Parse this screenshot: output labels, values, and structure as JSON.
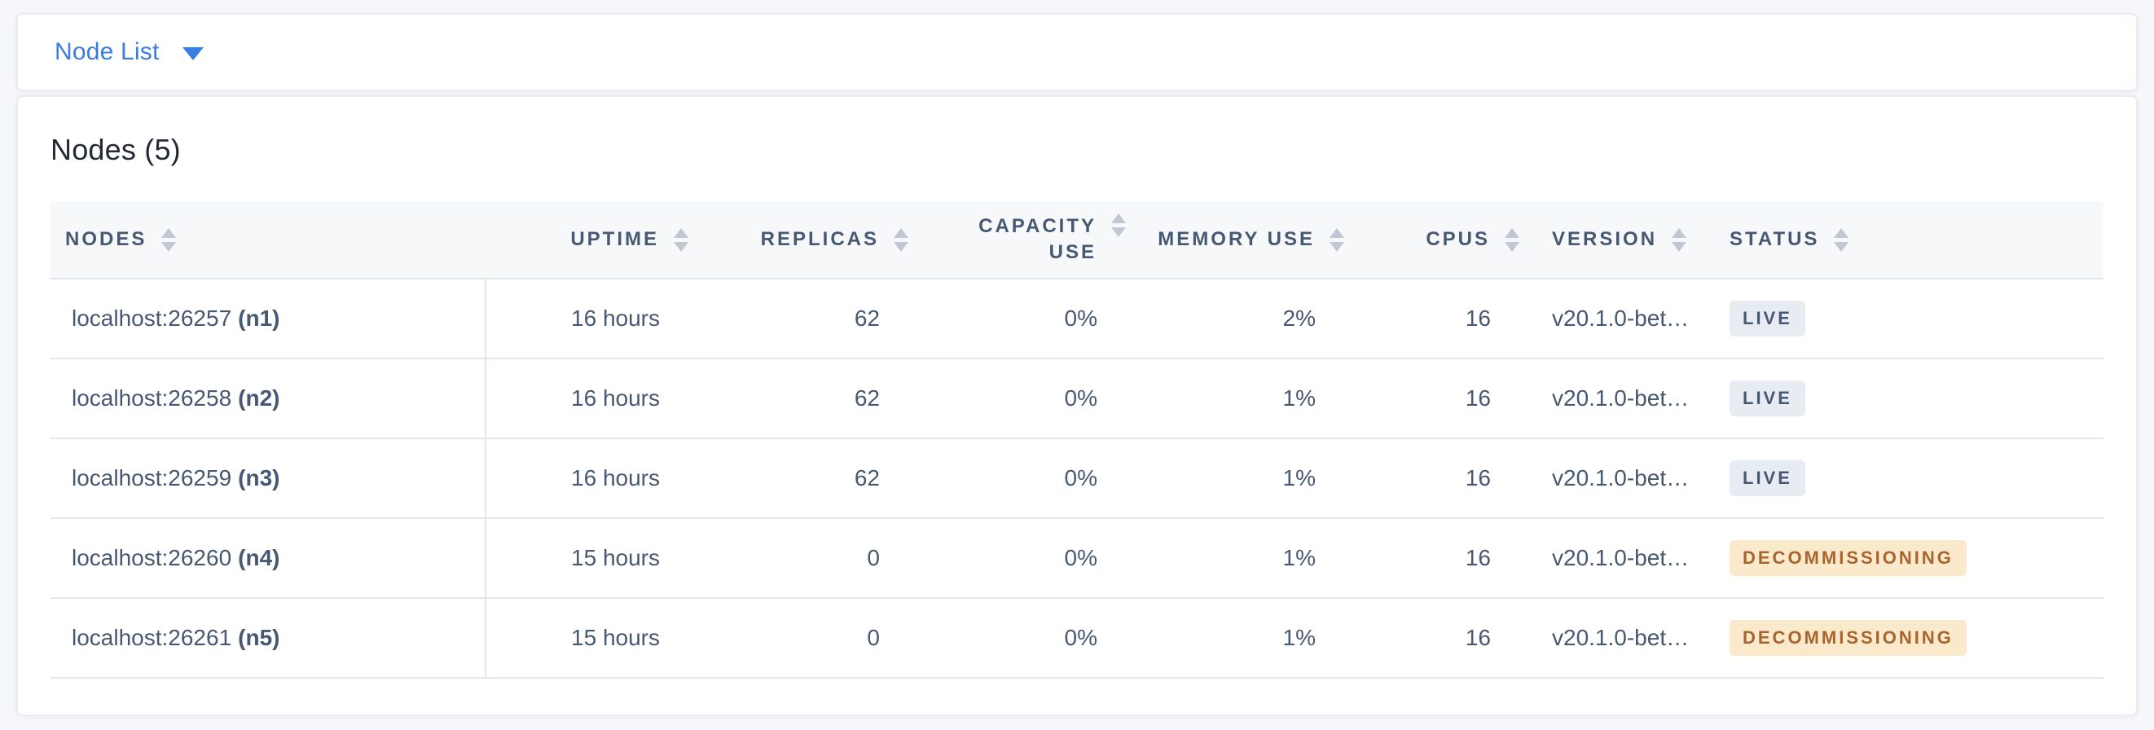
{
  "colors": {
    "page_bg": "#F5F7FA",
    "accent_blue": "#3A7DE1",
    "header_text": "#475872",
    "body_text": "#475872",
    "title_text": "#242A35",
    "divider": "#E4E7EE",
    "header_row_bg": "#F6F8FA",
    "live_badge_bg": "#E7EBF2",
    "live_badge_text": "#475872",
    "decommissioning_badge_bg": "#FBE9CC",
    "decommissioning_badge_text": "#A8642D"
  },
  "toolbar": {
    "view_selector_label": "Node List",
    "view_selector_icon": "caret-down"
  },
  "main": {
    "title": "Nodes (5)",
    "table": {
      "columns": [
        {
          "label": "NODES",
          "align": "left",
          "sortable": true,
          "icon": "sort-arrows"
        },
        {
          "label": "UPTIME",
          "align": "right",
          "sortable": true,
          "icon": "sort-arrows"
        },
        {
          "label": "REPLICAS",
          "align": "right",
          "sortable": true,
          "icon": "sort-arrows"
        },
        {
          "label": "CAPACITY USE",
          "align": "right",
          "sortable": true,
          "icon": "sort-arrows"
        },
        {
          "label": "MEMORY USE",
          "align": "right",
          "sortable": true,
          "icon": "sort-arrows"
        },
        {
          "label": "CPUS",
          "align": "right",
          "sortable": true,
          "icon": "sort-arrows"
        },
        {
          "label": "VERSION",
          "align": "left",
          "sortable": true,
          "icon": "sort-arrows"
        },
        {
          "label": "STATUS",
          "align": "left",
          "sortable": true,
          "icon": "sort-arrows"
        }
      ],
      "rows": [
        {
          "address": "localhost:26257",
          "node_id": "(n1)",
          "uptime": "16 hours",
          "replicas": "62",
          "capacity_use": "0%",
          "memory_use": "2%",
          "cpus": "16",
          "version": "v20.1.0-bet…",
          "status": "LIVE",
          "status_kind": "live"
        },
        {
          "address": "localhost:26258",
          "node_id": "(n2)",
          "uptime": "16 hours",
          "replicas": "62",
          "capacity_use": "0%",
          "memory_use": "1%",
          "cpus": "16",
          "version": "v20.1.0-bet…",
          "status": "LIVE",
          "status_kind": "live"
        },
        {
          "address": "localhost:26259",
          "node_id": "(n3)",
          "uptime": "16 hours",
          "replicas": "62",
          "capacity_use": "0%",
          "memory_use": "1%",
          "cpus": "16",
          "version": "v20.1.0-bet…",
          "status": "LIVE",
          "status_kind": "live"
        },
        {
          "address": "localhost:26260",
          "node_id": "(n4)",
          "uptime": "15 hours",
          "replicas": "0",
          "capacity_use": "0%",
          "memory_use": "1%",
          "cpus": "16",
          "version": "v20.1.0-bet…",
          "status": "DECOMMISSIONING",
          "status_kind": "decommissioning"
        },
        {
          "address": "localhost:26261",
          "node_id": "(n5)",
          "uptime": "15 hours",
          "replicas": "0",
          "capacity_use": "0%",
          "memory_use": "1%",
          "cpus": "16",
          "version": "v20.1.0-bet…",
          "status": "DECOMMISSIONING",
          "status_kind": "decommissioning"
        }
      ]
    }
  }
}
